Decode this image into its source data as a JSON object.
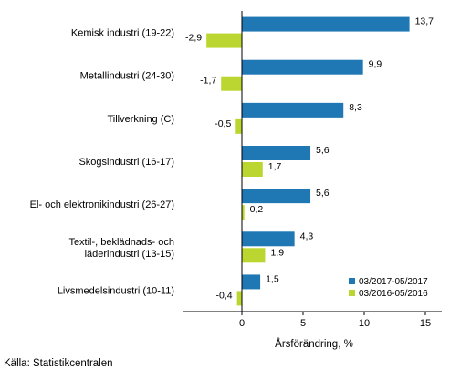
{
  "chart_data": {
    "type": "bar",
    "orientation": "horizontal",
    "categories": [
      [
        "Kemisk industri (19-22)"
      ],
      [
        "Metallindustri (24-30)"
      ],
      [
        "Tillverkning (C)"
      ],
      [
        "Skogsindustri (16-17)"
      ],
      [
        "El- och elektronikindustri (26-27)"
      ],
      [
        "Textil-, beklädnads- och",
        "läderindustri (13-15)"
      ],
      [
        "Livsmedelsindustri (10-11)"
      ]
    ],
    "series": [
      {
        "name": "03/2017-05/2017",
        "color": "#1f77b4",
        "values": [
          13.7,
          9.9,
          8.3,
          5.6,
          5.6,
          4.3,
          1.5
        ],
        "labels": [
          "13,7",
          "9,9",
          "8,3",
          "5,6",
          "5,6",
          "4,3",
          "1,5"
        ]
      },
      {
        "name": "03/2016-05/2016",
        "color": "#bcd631",
        "values": [
          -2.9,
          -1.7,
          -0.5,
          1.7,
          0.2,
          1.9,
          -0.4
        ],
        "labels": [
          "-2,9",
          "-1,7",
          "-0,5",
          "1,7",
          "0,2",
          "1,9",
          "-0,4"
        ]
      }
    ],
    "xlabel": "Årsförändring, %",
    "xlim": [
      -4.5,
      15.5
    ],
    "xticks": [
      0,
      5,
      10,
      15
    ],
    "xtick_labels": [
      "0",
      "5",
      "10",
      "15"
    ],
    "grid": false,
    "legend_position": "bottom-right"
  },
  "source_text": "Källa: Statistikcentralen"
}
